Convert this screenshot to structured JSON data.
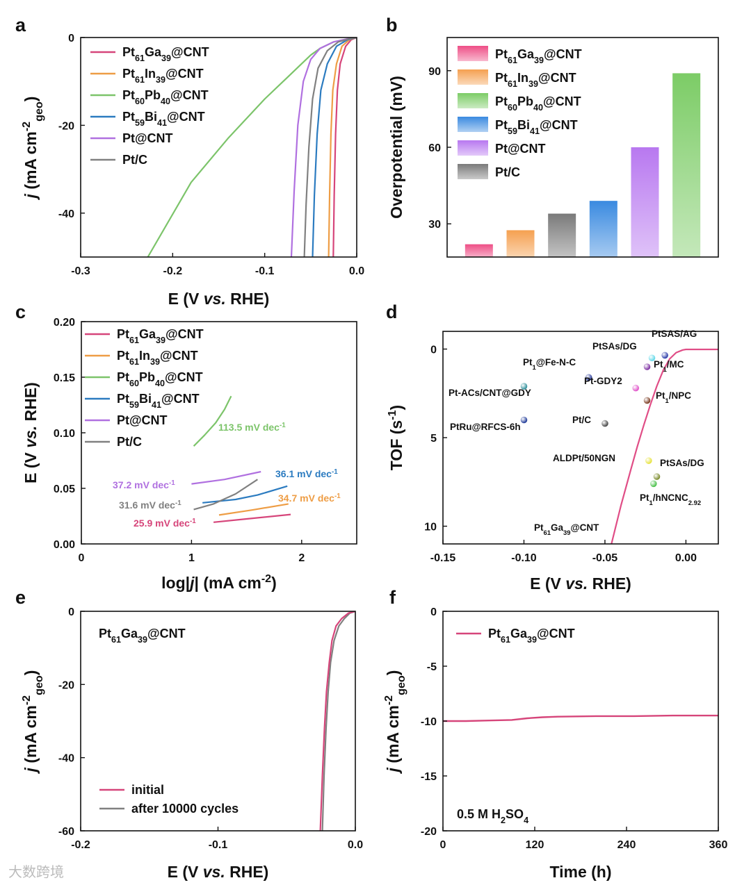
{
  "figure": {
    "watermark": "大数跨境",
    "colors": {
      "PtGa": "#d6457a",
      "PtIn": "#ee9d45",
      "PtPb": "#7cc46a",
      "PtBi": "#2b7bc0",
      "PtCNT": "#b070e0",
      "PtC": "#808080",
      "TOF": "#e04d86"
    }
  },
  "chart_data": [
    {
      "panel": "a",
      "type": "line",
      "xlabel_parts": [
        "E (V ",
        "vs.",
        " RHE)"
      ],
      "ylabel_parts": [
        "j",
        " (mA cm",
        "-2",
        "geo",
        ")"
      ],
      "xlim": [
        -0.3,
        0.0
      ],
      "ylim": [
        -50,
        0
      ],
      "xticks": [
        -0.3,
        -0.2,
        -0.1,
        0.0
      ],
      "xtick_labels": [
        "-0.3",
        "-0.2",
        "-0.1",
        "0.0"
      ],
      "yticks": [
        0,
        -20,
        -40
      ],
      "ytick_labels": [
        "0",
        "-20",
        "-40"
      ],
      "legend_position": "top-left",
      "series": [
        {
          "name": "Pt61Ga39@CNT",
          "color": "#d6457a",
          "label_parts": [
            "Pt",
            "61",
            "Ga",
            "39",
            "@CNT"
          ],
          "x": [
            0,
            -0.006,
            -0.012,
            -0.018,
            -0.021,
            -0.023,
            -0.0245,
            -0.0255
          ],
          "y": [
            0,
            -0.5,
            -2,
            -6,
            -12,
            -22,
            -36,
            -50
          ]
        },
        {
          "name": "Pt61In39@CNT",
          "color": "#ee9d45",
          "label_parts": [
            "Pt",
            "61",
            "In",
            "39",
            "@CNT"
          ],
          "x": [
            0,
            -0.008,
            -0.016,
            -0.022,
            -0.026,
            -0.028,
            -0.0295,
            -0.0305
          ],
          "y": [
            0,
            -0.5,
            -2,
            -6,
            -12,
            -22,
            -36,
            -50
          ]
        },
        {
          "name": "Pt60Pb40@CNT",
          "color": "#7cc46a",
          "label_parts": [
            "Pt",
            "60",
            "Pb",
            "40",
            "@CNT"
          ],
          "x": [
            0,
            -0.01,
            -0.025,
            -0.04,
            -0.05,
            -0.06,
            -0.075,
            -0.1,
            -0.14,
            -0.18,
            -0.227
          ],
          "y": [
            0,
            -0.3,
            -1,
            -2.5,
            -4,
            -6,
            -9,
            -14,
            -23,
            -33,
            -50
          ]
        },
        {
          "name": "Pt59Bi41@CNT",
          "color": "#2b7bc0",
          "label_parts": [
            "Pt",
            "59",
            "Bi",
            "41",
            "@CNT"
          ],
          "x": [
            0,
            -0.01,
            -0.022,
            -0.032,
            -0.039,
            -0.043,
            -0.046,
            -0.048
          ],
          "y": [
            0,
            -0.5,
            -2,
            -6,
            -12,
            -22,
            -36,
            -50
          ]
        },
        {
          "name": "Pt@CNT",
          "color": "#b070e0",
          "label_parts": [
            "Pt@CNT"
          ],
          "x": [
            0,
            -0.01,
            -0.025,
            -0.04,
            -0.05,
            -0.058,
            -0.064,
            -0.068,
            -0.071
          ],
          "y": [
            0,
            -0.3,
            -1,
            -2.5,
            -5,
            -10,
            -20,
            -35,
            -50
          ]
        },
        {
          "name": "Pt/C",
          "color": "#808080",
          "label_parts": [
            "Pt/C"
          ],
          "x": [
            0,
            -0.008,
            -0.02,
            -0.032,
            -0.042,
            -0.048,
            -0.052,
            -0.055,
            -0.057
          ],
          "y": [
            0,
            -0.3,
            -1,
            -3,
            -7,
            -14,
            -25,
            -38,
            -50
          ]
        }
      ]
    },
    {
      "panel": "b",
      "type": "bar",
      "ylabel": "Overpotential (mV)",
      "ylim": [
        17,
        103
      ],
      "yticks": [
        30,
        60,
        90
      ],
      "ytick_labels": [
        "30",
        "60",
        "90"
      ],
      "legend_position": "top-left",
      "categories": [
        "Pt61Ga39@CNT",
        "Pt61In39@CNT",
        "Pt/C",
        "Pt59Bi41@CNT",
        "Pt@CNT",
        "Pt60Pb40@CNT"
      ],
      "values": [
        22,
        27.5,
        34,
        39,
        60,
        89
      ],
      "bar_colors": [
        "#ee4e86",
        "#f5a050",
        "#7a7a7a",
        "#3a8ae0",
        "#b878f0",
        "#7ccc66"
      ],
      "legend": [
        {
          "label_parts": [
            "Pt",
            "61",
            "Ga",
            "39",
            "@CNT"
          ],
          "color": "#ee4e86"
        },
        {
          "label_parts": [
            "Pt",
            "61",
            "In",
            "39",
            "@CNT"
          ],
          "color": "#f5a050"
        },
        {
          "label_parts": [
            "Pt",
            "60",
            "Pb",
            "40",
            "@CNT"
          ],
          "color": "#7ccc66"
        },
        {
          "label_parts": [
            "Pt",
            "59",
            "Bi",
            "41",
            "@CNT"
          ],
          "color": "#3a8ae0"
        },
        {
          "label_parts": [
            "Pt@CNT"
          ],
          "color": "#b878f0"
        },
        {
          "label_parts": [
            "Pt/C"
          ],
          "color": "#7a7a7a"
        }
      ]
    },
    {
      "panel": "c",
      "type": "line",
      "xlabel_parts": [
        "log|",
        "j",
        "| (mA cm",
        "-2",
        ")"
      ],
      "ylabel_parts": [
        "E (V ",
        "vs.",
        " RHE)"
      ],
      "xlim": [
        0,
        2.5
      ],
      "ylim": [
        0,
        0.2
      ],
      "xticks": [
        0,
        1,
        2
      ],
      "xtick_labels": [
        "0",
        "1",
        "2"
      ],
      "yticks": [
        0,
        0.05,
        0.1,
        0.15,
        0.2
      ],
      "ytick_labels": [
        "0.00",
        "0.05",
        "0.10",
        "0.15",
        "0.20"
      ],
      "legend_position": "top-left",
      "series": [
        {
          "name": "Pt61Ga39@CNT",
          "color": "#d6457a",
          "label_parts": [
            "Pt",
            "61",
            "Ga",
            "39",
            "@CNT"
          ],
          "x": [
            1.2,
            1.5,
            1.9
          ],
          "y": [
            0.0195,
            0.0225,
            0.0265
          ]
        },
        {
          "name": "Pt61In39@CNT",
          "color": "#ee9d45",
          "label_parts": [
            "Pt",
            "61",
            "In",
            "39",
            "@CNT"
          ],
          "x": [
            1.25,
            1.55,
            1.88
          ],
          "y": [
            0.026,
            0.0305,
            0.036
          ]
        },
        {
          "name": "Pt60Pb40@CNT",
          "color": "#7cc46a",
          "label_parts": [
            "Pt",
            "60",
            "Pb",
            "40",
            "@CNT"
          ],
          "x": [
            1.02,
            1.12,
            1.22,
            1.3,
            1.36
          ],
          "y": [
            0.088,
            0.098,
            0.109,
            0.121,
            0.133
          ]
        },
        {
          "name": "Pt59Bi41@CNT",
          "color": "#2b7bc0",
          "label_parts": [
            "Pt",
            "59",
            "Bi",
            "41",
            "@CNT"
          ],
          "x": [
            1.1,
            1.4,
            1.6,
            1.87
          ],
          "y": [
            0.037,
            0.04,
            0.044,
            0.052
          ]
        },
        {
          "name": "Pt@CNT",
          "color": "#b070e0",
          "label_parts": [
            "Pt@CNT"
          ],
          "x": [
            1.0,
            1.3,
            1.63
          ],
          "y": [
            0.054,
            0.058,
            0.065
          ]
        },
        {
          "name": "Pt/C",
          "color": "#808080",
          "label_parts": [
            "Pt/C"
          ],
          "x": [
            1.02,
            1.2,
            1.4,
            1.6
          ],
          "y": [
            0.031,
            0.036,
            0.045,
            0.058
          ]
        }
      ],
      "annotations": [
        {
          "text": "113.5 mV dec",
          "sup": "-1",
          "color": "#7cc46a"
        },
        {
          "text": "37.2 mV dec",
          "sup": "-1",
          "color": "#b070e0"
        },
        {
          "text": "36.1 mV dec",
          "sup": "-1",
          "color": "#2b7bc0"
        },
        {
          "text": "31.6 mV dec",
          "sup": "-1",
          "color": "#808080"
        },
        {
          "text": "34.7 mV dec",
          "sup": "-1",
          "color": "#ee9d45"
        },
        {
          "text": "25.9 mV dec",
          "sup": "-1",
          "color": "#d6457a"
        }
      ]
    },
    {
      "panel": "d",
      "type": "scatter",
      "xlabel_parts": [
        "E (V ",
        "vs.",
        " RHE)"
      ],
      "ylabel_parts": [
        "TOF (s",
        "-1",
        ")"
      ],
      "xlim": [
        -0.15,
        0.02
      ],
      "ylim": [
        11,
        -1
      ],
      "xticks": [
        -0.15,
        -0.1,
        -0.05,
        0.0
      ],
      "xtick_labels": [
        "-0.15",
        "-0.10",
        "-0.05",
        "0.00"
      ],
      "yticks": [
        0,
        5,
        10
      ],
      "ytick_labels": [
        "0",
        "5",
        "10"
      ],
      "curve": {
        "label_parts": [
          "Pt",
          "61",
          "Ga",
          "39",
          "@CNT"
        ],
        "color": "#e04d86",
        "x": [
          -0.046,
          -0.04,
          -0.034,
          -0.03,
          -0.026,
          -0.022,
          -0.018,
          -0.014,
          -0.01,
          -0.006,
          -0.002,
          0.0,
          0.02
        ],
        "y": [
          11,
          8.8,
          6.8,
          5.5,
          4.3,
          3.15,
          2.1,
          1.2,
          0.55,
          0.2,
          0.05,
          0.02,
          0.02
        ]
      },
      "points": [
        {
          "label_parts": [
            "PtSAS/AG"
          ],
          "x": -0.013,
          "y": 0.35,
          "color": "#2a3aa8"
        },
        {
          "label_parts": [
            "PtSAs/DG"
          ],
          "x": -0.021,
          "y": 0.5,
          "color": "#5fd8e8"
        },
        {
          "label_parts": [
            "Pt",
            "1",
            "/MC"
          ],
          "x": -0.024,
          "y": 1.0,
          "color": "#7a2ca0"
        },
        {
          "label_parts": [
            "Pt",
            "1",
            "@Fe-N-C"
          ],
          "x": -0.06,
          "y": 1.6,
          "color": "#283a9a"
        },
        {
          "label_parts": [
            "Pt-GDY2"
          ],
          "x": -0.031,
          "y": 2.2,
          "color": "#e050c8"
        },
        {
          "label_parts": [
            "Pt-ACs/CNT@GDY"
          ],
          "x": -0.1,
          "y": 2.1,
          "color": "#2e8f9a"
        },
        {
          "label_parts": [
            "Pt",
            "1",
            "/NPC"
          ],
          "x": -0.024,
          "y": 2.9,
          "color": "#7a3a20"
        },
        {
          "label_parts": [
            "PtRu@RFCS-6h"
          ],
          "x": -0.1,
          "y": 4.0,
          "color": "#1f3a98"
        },
        {
          "label_parts": [
            "Pt/C"
          ],
          "x": -0.05,
          "y": 4.2,
          "color": "#444444"
        },
        {
          "label_parts": [
            "ALDPt/50NGN"
          ],
          "x": -0.023,
          "y": 6.3,
          "color": "#e6e23a"
        },
        {
          "label_parts": [
            "PtSAs/DG"
          ],
          "x": -0.018,
          "y": 7.2,
          "color": "#7a8a2a"
        },
        {
          "label_parts": [
            "Pt",
            "1",
            "/hNCNC",
            "2.92"
          ],
          "x": -0.02,
          "y": 7.6,
          "color": "#48c048"
        }
      ]
    },
    {
      "panel": "e",
      "type": "line",
      "xlabel_parts": [
        "E (V ",
        "vs.",
        " RHE)"
      ],
      "ylabel_parts": [
        "j",
        " (mA cm",
        "-2",
        "geo",
        ")"
      ],
      "xlim": [
        -0.2,
        0.0
      ],
      "ylim": [
        -60,
        0
      ],
      "xticks": [
        -0.2,
        -0.1,
        0.0
      ],
      "xtick_labels": [
        "-0.2",
        "-0.1",
        "0.0"
      ],
      "yticks": [
        0,
        -20,
        -40,
        -60
      ],
      "ytick_labels": [
        "0",
        "-20",
        "-40",
        "-60"
      ],
      "inset_label_parts": [
        "Pt",
        "61",
        "Ga",
        "39",
        "@CNT"
      ],
      "legend_position": "bottom-left",
      "series": [
        {
          "name": "initial",
          "color": "#d6457a",
          "label_parts": [
            "initial"
          ],
          "x": [
            0,
            -0.005,
            -0.01,
            -0.014,
            -0.017,
            -0.019,
            -0.021,
            -0.0225,
            -0.024,
            -0.0255
          ],
          "y": [
            0,
            -0.5,
            -2,
            -4,
            -8,
            -14,
            -22,
            -32,
            -45,
            -60
          ]
        },
        {
          "name": "after 10000 cycles",
          "color": "#808080",
          "label_parts": [
            "after 10000 cycles"
          ],
          "x": [
            0,
            -0.004,
            -0.008,
            -0.012,
            -0.0155,
            -0.018,
            -0.0198,
            -0.0213,
            -0.0228,
            -0.024
          ],
          "y": [
            0,
            -0.5,
            -2,
            -4,
            -8,
            -14,
            -22,
            -32,
            -45,
            -60
          ]
        }
      ]
    },
    {
      "panel": "f",
      "type": "line",
      "xlabel": "Time (h)",
      "ylabel_parts": [
        "j",
        " (mA cm",
        "-2",
        "geo",
        ")"
      ],
      "xlim": [
        0,
        360
      ],
      "ylim": [
        -20,
        0
      ],
      "xticks": [
        0,
        120,
        240,
        360
      ],
      "xtick_labels": [
        "0",
        "120",
        "240",
        "360"
      ],
      "yticks": [
        0,
        -5,
        -10,
        -15,
        -20
      ],
      "ytick_labels": [
        "0",
        "-5",
        "-10",
        "-15",
        "-20"
      ],
      "inset_label_parts": [
        "0.5 M H",
        "2",
        "SO",
        "4"
      ],
      "legend_position": "top-left",
      "series": [
        {
          "name": "Pt61Ga39@CNT",
          "color": "#d6457a",
          "label_parts": [
            "Pt",
            "61",
            "Ga",
            "39",
            "@CNT"
          ],
          "x": [
            0,
            30,
            60,
            90,
            110,
            130,
            150,
            200,
            250,
            300,
            360
          ],
          "y": [
            -10.0,
            -10.0,
            -9.95,
            -9.9,
            -9.75,
            -9.65,
            -9.6,
            -9.55,
            -9.55,
            -9.5,
            -9.5
          ]
        }
      ]
    }
  ]
}
